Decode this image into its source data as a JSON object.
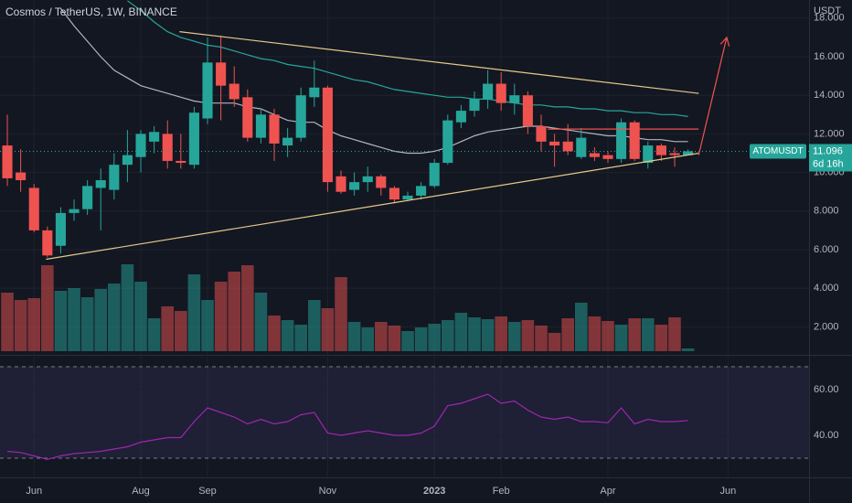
{
  "chart_data": {
    "type": "candlestick",
    "title": "Cosmos / TetherUS, 1W, BINANCE",
    "currency": "USDT",
    "up_color": "#26a69a",
    "down_color": "#ef5350",
    "xlim": [
      -0.55,
      60.07
    ],
    "xticks": [
      {
        "value": 2,
        "label": "Jun"
      },
      {
        "value": 10,
        "label": "Aug"
      },
      {
        "value": 15,
        "label": "Sep"
      },
      {
        "value": 24,
        "label": "Nov"
      },
      {
        "value": 32,
        "label": "2023"
      },
      {
        "value": 37,
        "label": "Feb"
      },
      {
        "value": 45,
        "label": "Apr"
      },
      {
        "value": 54,
        "label": "Jun"
      }
    ],
    "ylim": [
      0.69,
      18.94
    ],
    "yticks": [
      {
        "value": 18,
        "label": "18.000"
      },
      {
        "value": 16,
        "label": "16.000"
      },
      {
        "value": 14,
        "label": "14.000"
      },
      {
        "value": 12,
        "label": "12.000"
      },
      {
        "value": 10,
        "label": "10.000"
      },
      {
        "value": 8,
        "label": "8.000"
      },
      {
        "value": 6,
        "label": "6.000"
      },
      {
        "value": 4,
        "label": "4.000"
      },
      {
        "value": 2,
        "label": "2.000"
      }
    ],
    "open": [
      11.4,
      10.0,
      9.2,
      7.0,
      6.2,
      7.9,
      8.1,
      9.2,
      9.1,
      10.4,
      10.8,
      11.6,
      12.0,
      10.6,
      10.4,
      12.8,
      15.7,
      14.6,
      13.9,
      11.8,
      13.0,
      11.4,
      11.8,
      13.9,
      14.4,
      9.8,
      9.1,
      9.5,
      9.8,
      9.2,
      8.6,
      8.8,
      9.3,
      10.5,
      12.6,
      13.2,
      13.8,
      14.6,
      13.6,
      14.0,
      12.4,
      11.6,
      11.6,
      10.8,
      11.0,
      10.9,
      10.7,
      12.6,
      10.5,
      11.4,
      11.0,
      10.9
    ],
    "high": [
      13.0,
      11.2,
      9.4,
      7.2,
      8.2,
      8.6,
      9.6,
      10.2,
      11.0,
      12.2,
      12.2,
      12.4,
      12.7,
      12.0,
      13.4,
      17.0,
      17.1,
      15.5,
      14.3,
      13.3,
      13.3,
      12.3,
      14.4,
      15.8,
      14.5,
      10.1,
      10.0,
      10.3,
      9.9,
      9.3,
      9.0,
      9.5,
      10.7,
      13.0,
      13.5,
      14.2,
      15.3,
      15.2,
      14.6,
      14.2,
      13.0,
      12.0,
      12.5,
      12.3,
      11.3,
      11.1,
      12.8,
      12.7,
      11.6,
      11.5,
      11.3,
      11.2
    ],
    "low": [
      9.3,
      9.0,
      6.9,
      5.6,
      5.8,
      7.5,
      7.8,
      7.0,
      8.6,
      9.5,
      10.0,
      11.0,
      10.2,
      10.2,
      10.2,
      12.5,
      12.7,
      13.4,
      11.6,
      11.5,
      10.6,
      10.8,
      11.6,
      13.4,
      9.0,
      8.9,
      8.8,
      9.0,
      8.8,
      8.4,
      8.5,
      8.6,
      9.2,
      10.4,
      12.3,
      12.9,
      13.3,
      13.2,
      13.0,
      12.0,
      11.1,
      10.3,
      10.9,
      10.7,
      10.6,
      10.5,
      10.5,
      10.6,
      10.2,
      10.6,
      10.3,
      10.9
    ],
    "close": [
      9.7,
      9.6,
      7.0,
      5.7,
      7.9,
      8.1,
      9.3,
      9.6,
      10.4,
      10.9,
      12.0,
      12.1,
      10.6,
      10.5,
      13.1,
      15.7,
      14.5,
      13.8,
      11.8,
      13.0,
      11.5,
      11.8,
      14.0,
      14.4,
      9.5,
      9.0,
      9.5,
      9.8,
      9.2,
      8.6,
      8.8,
      9.3,
      10.5,
      12.7,
      13.2,
      13.8,
      14.6,
      13.6,
      14.0,
      12.4,
      11.6,
      11.4,
      11.1,
      11.8,
      10.8,
      10.7,
      12.6,
      10.7,
      11.4,
      10.9,
      10.9,
      11.1
    ],
    "volume": [
      64,
      56,
      58,
      94,
      66,
      69,
      59,
      68,
      74,
      95,
      76,
      36,
      49,
      44,
      84,
      56,
      76,
      87,
      94,
      64,
      39,
      34,
      29,
      56,
      47,
      81,
      32,
      26,
      32,
      28,
      22,
      26,
      30,
      34,
      42,
      37,
      35,
      38,
      32,
      34,
      28,
      20,
      36,
      53,
      38,
      33,
      29,
      36,
      36,
      29,
      37,
      3
    ],
    "volume_lim": [
      0,
      110
    ],
    "series": [
      {
        "color": "#b2b5be",
        "values": [
          null,
          null,
          null,
          null,
          18.5,
          17.6,
          16.8,
          16.0,
          15.3,
          14.9,
          14.5,
          14.3,
          14.1,
          13.9,
          13.7,
          13.6,
          13.6,
          13.6,
          13.4,
          13.3,
          13.0,
          12.7,
          12.6,
          12.6,
          12.2,
          11.9,
          11.7,
          11.5,
          11.3,
          11.1,
          11.0,
          11.0,
          11.1,
          11.3,
          11.6,
          11.9,
          12.1,
          12.2,
          12.3,
          12.4,
          12.4,
          12.3,
          12.2,
          12.1,
          12.0,
          11.9,
          11.9,
          11.8,
          11.7,
          11.7,
          11.6,
          11.6
        ]
      },
      {
        "color": "#26a69a",
        "values": [
          null,
          null,
          null,
          null,
          null,
          null,
          null,
          null,
          null,
          18.9,
          18.4,
          17.8,
          17.3,
          17.0,
          16.8,
          16.6,
          16.5,
          16.3,
          16.1,
          15.9,
          15.8,
          15.6,
          15.5,
          15.4,
          15.2,
          15.0,
          14.8,
          14.7,
          14.5,
          14.3,
          14.2,
          14.1,
          14.0,
          13.9,
          13.9,
          13.8,
          13.8,
          13.7,
          13.6,
          13.5,
          13.5,
          13.4,
          13.4,
          13.3,
          13.3,
          13.2,
          13.2,
          13.1,
          13.1,
          13.0,
          13.0,
          12.9
        ]
      }
    ],
    "drawings": [
      {
        "color": "#e6c98a",
        "x": [
          12.9,
          51.8
        ],
        "y": [
          17.3,
          14.1
        ]
      },
      {
        "color": "#e6c98a",
        "x": [
          2.9,
          51.8
        ],
        "y": [
          5.5,
          11.0
        ]
      },
      {
        "color": "#ef5350",
        "x": [
          40.5,
          51.8
        ],
        "y": [
          12.25,
          12.25
        ]
      },
      {
        "color": "#ef5350",
        "x": [
          51.8,
          53.9
        ],
        "y": [
          10.9,
          17.0
        ]
      }
    ],
    "last_price": {
      "value": 11.096,
      "label": "11.096"
    },
    "symbol": "ATOMUSDT",
    "countdown": "6d 16h",
    "rsi": {
      "color": "#9c27b0",
      "values": [
        33,
        32.5,
        31,
        29.5,
        31,
        32,
        32.5,
        33,
        34,
        35,
        37,
        38,
        39,
        39,
        46,
        52,
        50,
        48,
        45,
        47,
        45,
        46,
        49,
        50,
        41,
        40,
        41,
        42,
        41,
        40,
        40,
        41,
        44,
        53,
        54,
        56,
        58,
        54,
        55,
        51,
        48,
        47,
        48,
        46,
        46,
        45.5,
        52,
        45,
        47,
        46,
        46,
        46.5
      ],
      "ylim": [
        21.6,
        73.2
      ],
      "yticks": [
        {
          "value": 60,
          "label": "60.00"
        },
        {
          "value": 40,
          "label": "40.00"
        }
      ],
      "levels": [
        70,
        30
      ]
    }
  }
}
